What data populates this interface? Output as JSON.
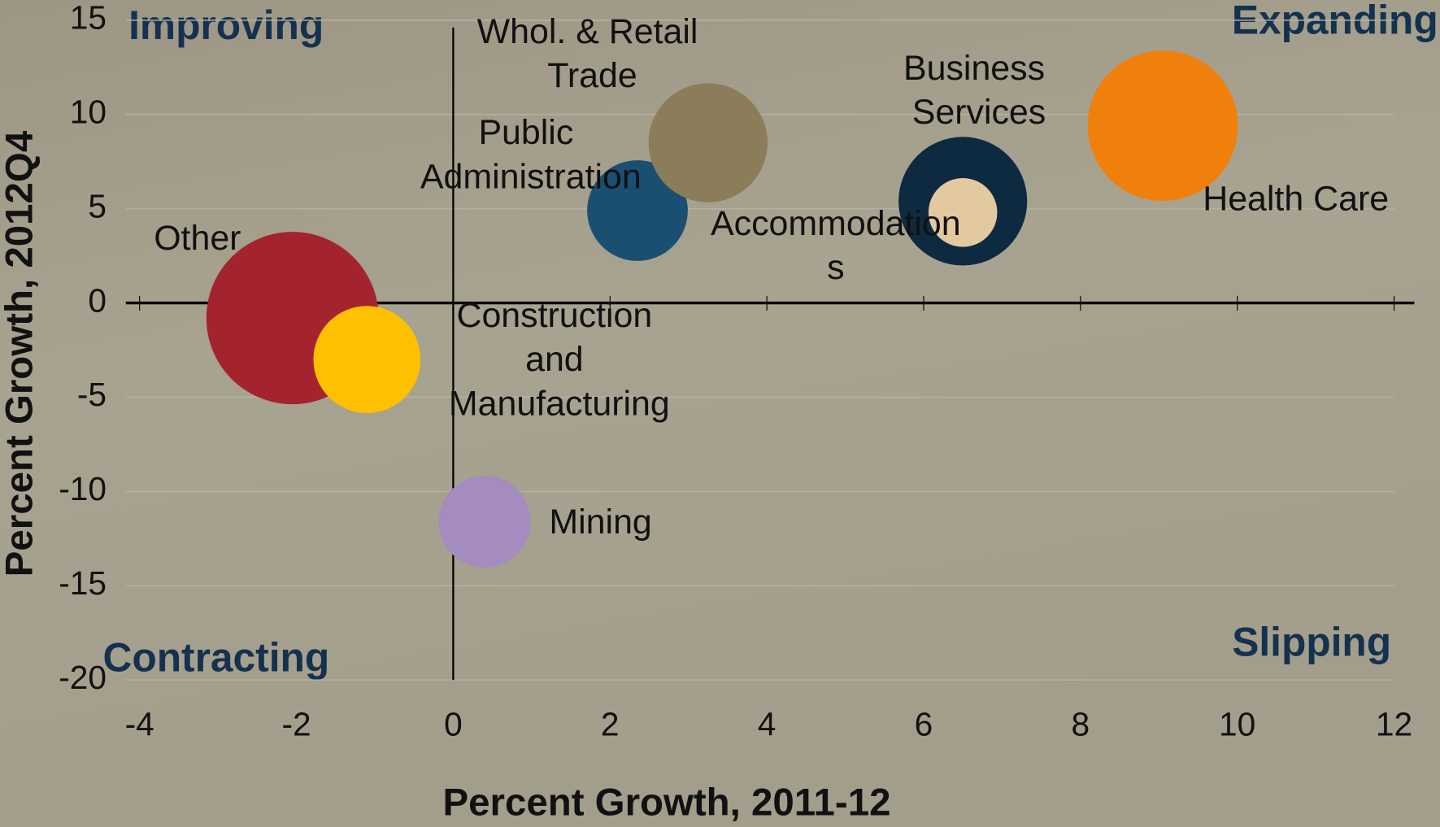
{
  "chart_data": {
    "type": "bubble",
    "x_label": "Percent Growth, 2011-12",
    "y_label": "Percent Growth, 2012Q4",
    "annotations": [
      "Improving",
      "Expanding",
      "Contracting",
      "Slipping"
    ],
    "xlim": [
      -4,
      12
    ],
    "xticks": [
      -4,
      -2,
      0,
      2,
      4,
      6,
      8,
      10,
      12
    ],
    "ylim": [
      -20,
      15
    ],
    "yticks": [
      -20,
      -15,
      -10,
      -5,
      0,
      5,
      10,
      15
    ],
    "grid": true,
    "series": [
      {
        "name": "Other",
        "color": "#a3242f",
        "x": -2.05,
        "y": -0.8,
        "size": 88
      },
      {
        "name": "Construction and Manufacturing",
        "color": "#ffc000",
        "x": -1.1,
        "y": -3.0,
        "size": 34
      },
      {
        "name": "Mining",
        "color": "#a48bc0",
        "x": 0.4,
        "y": -11.6,
        "size": 25
      },
      {
        "name": "Public Administration",
        "color": "#1b4f72",
        "x": 2.35,
        "y": 4.9,
        "size": 30
      },
      {
        "name": "Whol. & Retail Trade",
        "color": "#8b7d5a",
        "x": 3.25,
        "y": 8.5,
        "size": 42
      },
      {
        "name": "Business Services",
        "color": "#0e2a40",
        "x": 6.5,
        "y": 5.4,
        "size": 49
      },
      {
        "name": "Accommodations",
        "color": "#e3c9a0",
        "x": 6.5,
        "y": 4.8,
        "size": 14
      },
      {
        "name": "Health Care",
        "color": "#f0800c",
        "x": 9.05,
        "y": 9.4,
        "size": 67
      }
    ]
  }
}
